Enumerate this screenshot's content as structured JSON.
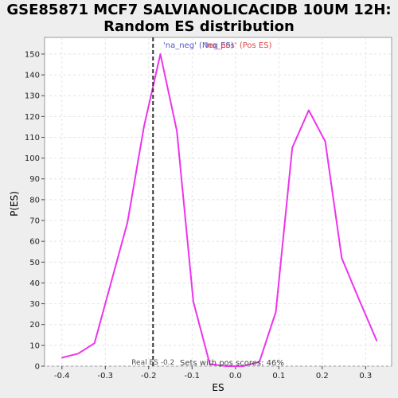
{
  "chart_data": {
    "type": "line",
    "title_lines": [
      "GSE85871 MCF7 SALVIANOLICACIDB 10UM 12H:",
      "Random ES distribution"
    ],
    "xlabel": "ES",
    "ylabel": "P(ES)",
    "xlim": [
      -0.44,
      0.36
    ],
    "ylim": [
      0,
      158
    ],
    "x_ticks": [
      -0.4,
      -0.3,
      -0.2,
      -0.1,
      0.0,
      0.1,
      0.2,
      0.3
    ],
    "x_tick_labels": [
      "-0.4",
      "-0.3",
      "-0.2",
      "-0.1",
      "0.0",
      "0.1",
      "0.2",
      "0.3"
    ],
    "y_ticks": [
      0,
      10,
      20,
      30,
      40,
      50,
      60,
      70,
      80,
      90,
      100,
      110,
      120,
      130,
      140,
      150
    ],
    "y_tick_labels": [
      "0",
      "10",
      "20",
      "30",
      "40",
      "50",
      "60",
      "70",
      "80",
      "90",
      "100",
      "110",
      "120",
      "130",
      "140",
      "150"
    ],
    "grid": true,
    "series": [
      {
        "color": "#ee33ee",
        "x": [
          -0.401,
          -0.363,
          -0.325,
          -0.287,
          -0.249,
          -0.211,
          -0.173,
          -0.135,
          -0.097,
          -0.059,
          -0.021,
          0.017,
          0.055,
          0.093,
          0.131,
          0.169,
          0.207,
          0.245,
          0.283,
          0.326
        ],
        "y": [
          4,
          6,
          11,
          40,
          69,
          115,
          150,
          113,
          31,
          1,
          0,
          0,
          2,
          26,
          105,
          123,
          108,
          52,
          33,
          12
        ]
      }
    ],
    "vline": {
      "x": -0.19,
      "label": "Real ES -0.2",
      "color": "#333333"
    },
    "legend": {
      "placement": "top-center",
      "entries": [
        {
          "text": "'na_neg' (Neg ES)",
          "color": "#5555cc"
        },
        {
          "text": "'na_pos' (Pos ES)",
          "color": "#dd4444"
        }
      ]
    },
    "annotation": "Sets with pos scores: 46%"
  }
}
